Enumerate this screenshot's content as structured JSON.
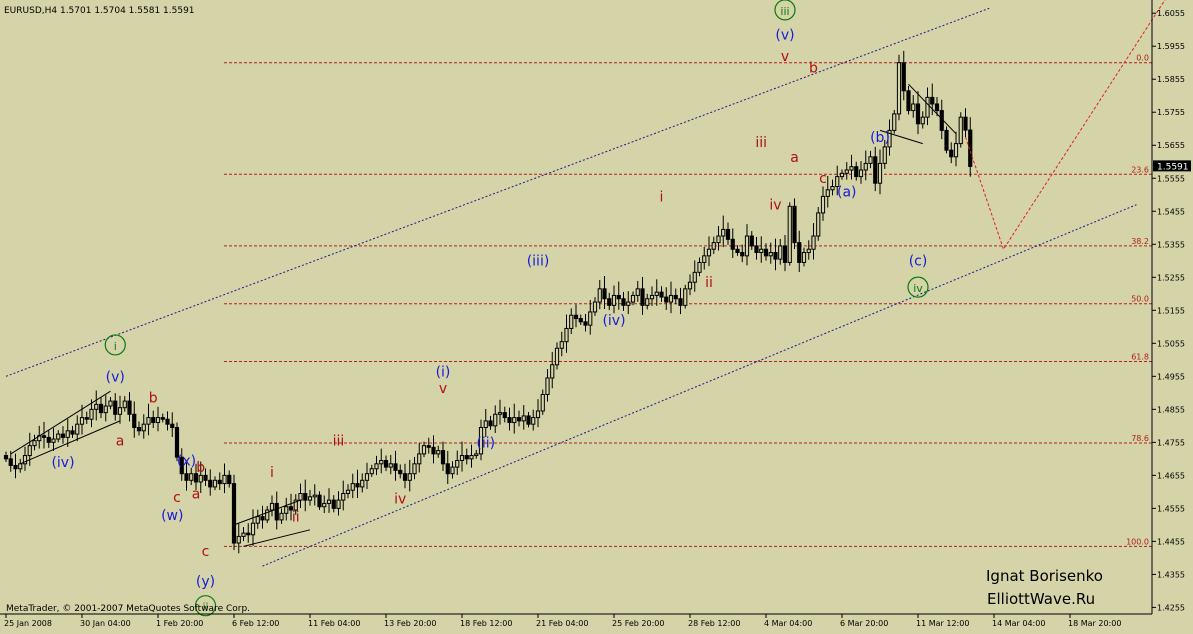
{
  "header": {
    "symbol_line": "EURUSD,H4  1.5701 1.5704 1.5581 1.5591"
  },
  "footer": {
    "copyright": "MetaTrader, © 2001-2007 MetaQuotes Software Corp."
  },
  "watermark": {
    "author": "Ignat Borisenko",
    "site": "ElliottWave.Ru"
  },
  "price_badge": "1.5591",
  "colors": {
    "background": "#d4d4a8",
    "candle": "#000000",
    "fib_line": "#b02020",
    "channel_line": "#1a1a90",
    "projection": "#e02020",
    "wave_blue": "#1a1adc",
    "wave_red": "#b01010",
    "wave_green": "#0a7a0a",
    "badge_bg": "#000000"
  },
  "chart_data": {
    "type": "candlestick",
    "symbol": "EURUSD",
    "timeframe": "H4",
    "ohlc_last": {
      "open": 1.5701,
      "high": 1.5704,
      "low": 1.5581,
      "close": 1.5591
    },
    "ylim": [
      1.4235,
      1.6095
    ],
    "y_ticks": [
      1.6055,
      1.5955,
      1.5855,
      1.5755,
      1.5655,
      1.5555,
      1.5455,
      1.5355,
      1.5255,
      1.5155,
      1.5055,
      1.4955,
      1.4855,
      1.4755,
      1.4655,
      1.4555,
      1.4455,
      1.4355,
      1.4255
    ],
    "y_tick_labels": [
      "1.6055",
      "1.5955",
      "1.5855",
      "1.5755",
      "1.5655",
      "1.5555",
      "1.5455",
      "1.5355",
      "1.5255",
      "1.5155",
      "1.5055",
      "1.4955",
      "1.4855",
      "1.4755",
      "1.4655",
      "1.4555",
      "1.4455",
      "1.4355",
      "1.4255"
    ],
    "x_tick_labels": [
      "25 Jan 2008",
      "30 Jan 04:00",
      "1 Feb 20:00",
      "6 Feb 12:00",
      "11 Feb 04:00",
      "13 Feb 20:00",
      "18 Feb 12:00",
      "21 Feb 04:00",
      "25 Feb 20:00",
      "28 Feb 12:00",
      "4 Mar 04:00",
      "6 Mar 20:00",
      "11 Mar 12:00",
      "14 Mar 04:00",
      "18 Mar 20:00"
    ],
    "bars_per_tick": 16,
    "fib_levels": [
      {
        "label": "0.0",
        "price": 1.5905
      },
      {
        "label": "23.6",
        "price": 1.5567
      },
      {
        "label": "38.2",
        "price": 1.535
      },
      {
        "label": "50.0",
        "price": 1.5175
      },
      {
        "label": "61.8",
        "price": 1.5
      },
      {
        "label": "78.6",
        "price": 1.4753
      },
      {
        "label": "100.0",
        "price": 1.444
      }
    ],
    "closes": [
      1.4705,
      1.4685,
      1.4675,
      1.469,
      1.4715,
      1.4745,
      1.476,
      1.4775,
      1.477,
      1.4755,
      1.4765,
      1.478,
      1.477,
      1.479,
      1.478,
      1.481,
      1.483,
      1.4825,
      1.4855,
      1.487,
      1.4845,
      1.4865,
      1.488,
      1.484,
      1.486,
      1.488,
      1.484,
      1.48,
      1.479,
      1.481,
      1.483,
      1.4815,
      1.483,
      1.4825,
      1.481,
      1.48,
      1.471,
      1.466,
      1.464,
      1.466,
      1.4635,
      1.4655,
      1.464,
      1.462,
      1.464,
      1.463,
      1.4655,
      1.463,
      1.445,
      1.447,
      1.448,
      1.4475,
      1.451,
      1.453,
      1.452,
      1.455,
      1.457,
      1.452,
      1.454,
      1.456,
      1.455,
      1.458,
      1.46,
      1.458,
      1.459,
      1.4595,
      1.456,
      1.457,
      1.458,
      1.4555,
      1.458,
      1.46,
      1.461,
      1.463,
      1.462,
      1.464,
      1.466,
      1.4675,
      1.469,
      1.47,
      1.468,
      1.469,
      1.467,
      1.466,
      1.464,
      1.466,
      1.469,
      1.472,
      1.4745,
      1.474,
      1.472,
      1.473,
      1.469,
      1.466,
      1.468,
      1.47,
      1.4715,
      1.4705,
      1.4715,
      1.472,
      1.48,
      1.482,
      1.4805,
      1.484,
      1.4845,
      1.483,
      1.4815,
      1.483,
      1.482,
      1.4835,
      1.481,
      1.483,
      1.485,
      1.49,
      1.495,
      1.499,
      1.504,
      1.506,
      1.51,
      1.514,
      1.513,
      1.512,
      1.511,
      1.515,
      1.518,
      1.522,
      1.519,
      1.517,
      1.52,
      1.519,
      1.517,
      1.518,
      1.52,
      1.522,
      1.517,
      1.519,
      1.52,
      1.521,
      1.5195,
      1.518,
      1.52,
      1.519,
      1.517,
      1.522,
      1.524,
      1.527,
      1.53,
      1.532,
      1.534,
      1.536,
      1.538,
      1.54,
      1.537,
      1.534,
      1.533,
      1.532,
      1.538,
      1.535,
      1.533,
      1.534,
      1.532,
      1.533,
      1.531,
      1.535,
      1.53,
      1.547,
      1.536,
      1.53,
      1.533,
      1.534,
      1.538,
      1.545,
      1.55,
      1.552,
      1.553,
      1.556,
      1.557,
      1.558,
      1.559,
      1.556,
      1.558,
      1.56,
      1.562,
      1.554,
      1.56,
      1.565,
      1.57,
      1.575,
      1.5905,
      1.582,
      1.576,
      1.578,
      1.572,
      1.574,
      1.58,
      1.578,
      1.576,
      1.57,
      1.564,
      1.562,
      1.566,
      1.574,
      1.5701,
      1.5591
    ],
    "channel": {
      "upper": [
        [
          0,
          1.4955
        ],
        [
          207,
          1.607
        ]
      ],
      "lower": [
        [
          54,
          1.438
        ],
        [
          238,
          1.5475
        ]
      ]
    },
    "wedges": [
      {
        "points": [
          [
            1,
            1.472
          ],
          [
            22,
            1.491
          ],
          [
            24,
            1.482
          ],
          [
            3,
            1.469
          ]
        ]
      },
      {
        "points": [
          [
            48,
            1.4505
          ],
          [
            62,
            1.458
          ],
          [
            64,
            1.449
          ],
          [
            50,
            1.444
          ]
        ]
      },
      {
        "points": [
          [
            190,
            1.584
          ],
          [
            200,
            1.569
          ],
          [
            193,
            1.566
          ],
          [
            184,
            1.57
          ]
        ]
      }
    ],
    "projection": [
      [
        202,
        1.568
      ],
      [
        210,
        1.534
      ],
      [
        246,
        1.614
      ]
    ],
    "wave_labels": [
      {
        "text": "i",
        "bar": 23,
        "price": 1.5035,
        "color": "green",
        "circled": true
      },
      {
        "text": "(v)",
        "bar": 23,
        "price": 1.494,
        "color": "blue"
      },
      {
        "text": "(iv)",
        "bar": 12,
        "price": 1.468,
        "color": "blue"
      },
      {
        "text": "b",
        "bar": 31,
        "price": 1.4875,
        "color": "red"
      },
      {
        "text": "a",
        "bar": 24,
        "price": 1.4745,
        "color": "red"
      },
      {
        "text": "(x)",
        "bar": 38,
        "price": 1.4685,
        "color": "blue"
      },
      {
        "text": "b",
        "bar": 41,
        "price": 1.4665,
        "color": "red"
      },
      {
        "text": "c",
        "bar": 36,
        "price": 1.4575,
        "color": "red"
      },
      {
        "text": "a",
        "bar": 40,
        "price": 1.4585,
        "color": "red"
      },
      {
        "text": "(w)",
        "bar": 35,
        "price": 1.452,
        "color": "blue"
      },
      {
        "text": "c",
        "bar": 42,
        "price": 1.441,
        "color": "red"
      },
      {
        "text": "(y)",
        "bar": 42,
        "price": 1.432,
        "color": "blue"
      },
      {
        "text": "ii",
        "bar": 42,
        "price": 1.4245,
        "color": "green",
        "circled": true
      },
      {
        "text": "i",
        "bar": 56,
        "price": 1.465,
        "color": "red"
      },
      {
        "text": "ii",
        "bar": 61,
        "price": 1.4515,
        "color": "red"
      },
      {
        "text": "iii",
        "bar": 70,
        "price": 1.4745,
        "color": "red"
      },
      {
        "text": "iv",
        "bar": 83,
        "price": 1.457,
        "color": "red"
      },
      {
        "text": "(i)",
        "bar": 92,
        "price": 1.4955,
        "color": "blue"
      },
      {
        "text": "v",
        "bar": 92,
        "price": 1.4905,
        "color": "red"
      },
      {
        "text": "(ii)",
        "bar": 101,
        "price": 1.474,
        "color": "blue"
      },
      {
        "text": "(iii)",
        "bar": 112,
        "price": 1.529,
        "color": "blue"
      },
      {
        "text": "(iv)",
        "bar": 128,
        "price": 1.511,
        "color": "blue"
      },
      {
        "text": "i",
        "bar": 138,
        "price": 1.5485,
        "color": "red"
      },
      {
        "text": "ii",
        "bar": 148,
        "price": 1.5225,
        "color": "red"
      },
      {
        "text": "iii",
        "bar": 159,
        "price": 1.565,
        "color": "red"
      },
      {
        "text": "iv",
        "bar": 162,
        "price": 1.546,
        "color": "red"
      },
      {
        "text": "iii",
        "bar": 164,
        "price": 1.605,
        "color": "green",
        "circled": true
      },
      {
        "text": "(v)",
        "bar": 164,
        "price": 1.5975,
        "color": "blue"
      },
      {
        "text": "v",
        "bar": 164,
        "price": 1.591,
        "color": "red"
      },
      {
        "text": "b",
        "bar": 170,
        "price": 1.5875,
        "color": "red"
      },
      {
        "text": "a",
        "bar": 166,
        "price": 1.5605,
        "color": "red"
      },
      {
        "text": "c",
        "bar": 172,
        "price": 1.554,
        "color": "red"
      },
      {
        "text": "(a)",
        "bar": 177,
        "price": 1.55,
        "color": "blue"
      },
      {
        "text": "(b)",
        "bar": 184,
        "price": 1.5665,
        "color": "blue"
      },
      {
        "text": "(c)",
        "bar": 192,
        "price": 1.529,
        "color": "blue"
      },
      {
        "text": "iv",
        "bar": 192,
        "price": 1.521,
        "color": "green",
        "circled": true
      }
    ]
  }
}
